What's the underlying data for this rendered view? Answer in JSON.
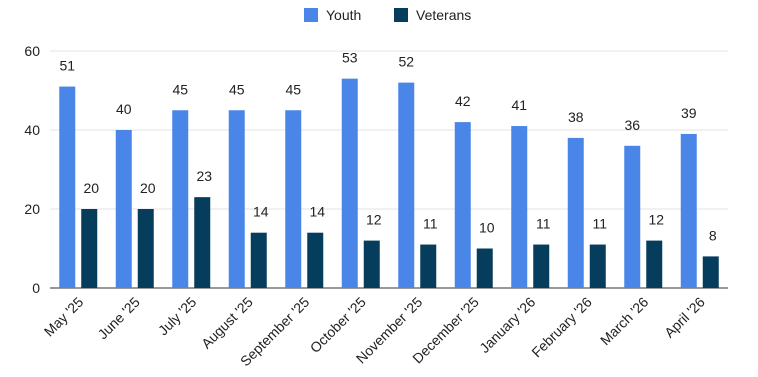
{
  "chart_data": {
    "type": "bar",
    "categories": [
      "May '25",
      "June '25",
      "July '25",
      "August '25",
      "September '25",
      "October '25",
      "November '25",
      "December '25",
      "January '26",
      "February '26",
      "March '26",
      "April '26"
    ],
    "series": [
      {
        "name": "Youth",
        "color": "#4a86e8",
        "values": [
          51,
          40,
          45,
          45,
          45,
          53,
          52,
          42,
          41,
          38,
          36,
          39
        ]
      },
      {
        "name": "Veterans",
        "color": "#073d5c",
        "values": [
          20,
          20,
          23,
          14,
          14,
          12,
          11,
          10,
          11,
          11,
          12,
          8
        ]
      }
    ],
    "y_ticks": [
      "0",
      "20",
      "40",
      "60"
    ],
    "ylim": [
      0,
      60
    ],
    "grid": true,
    "legend_position": "top-center",
    "data_labels": true
  }
}
